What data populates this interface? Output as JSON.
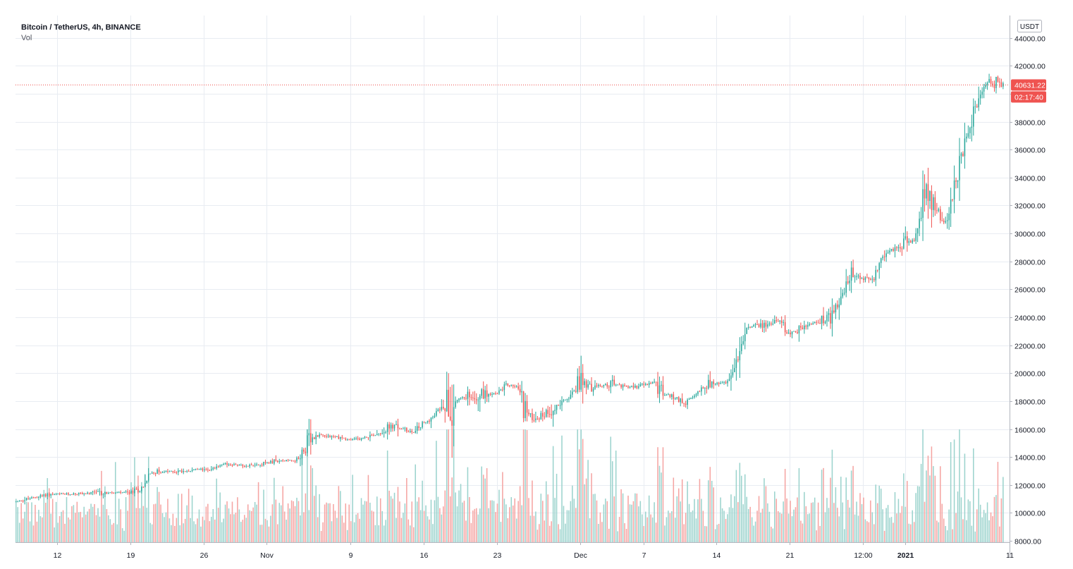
{
  "legend": {
    "symbol": "Bitcoin / TetherUS, 4h, BINANCE",
    "volume_label": "Vol"
  },
  "currency_badge": "USDT",
  "last_price_label": "40631.22",
  "countdown_label": "02:17:40",
  "colors": {
    "up": "#26a69a",
    "down": "#ef5350",
    "vol_up": "#9bd3cd",
    "vol_down": "#f5a4a2",
    "grid": "#e8ecf2",
    "price_line": "#ef5350"
  },
  "chart_data": {
    "type": "candlestick",
    "title": "Bitcoin / TetherUS, 4h, BINANCE",
    "x_tick_labels": [
      "12",
      "19",
      "26",
      "Nov",
      "9",
      "16",
      "23",
      "Dec",
      "7",
      "14",
      "21",
      "12:00",
      "2021",
      "11"
    ],
    "y_tick_labels": [
      "8000.00",
      "10000.00",
      "12000.00",
      "14000.00",
      "16000.00",
      "18000.00",
      "20000.00",
      "22000.00",
      "24000.00",
      "26000.00",
      "28000.00",
      "30000.00",
      "32000.00",
      "34000.00",
      "36000.00",
      "38000.00",
      "40000.00",
      "42000.00",
      "44000.00"
    ],
    "ylim": [
      7900,
      45600
    ],
    "last_price": 40631.22,
    "price_anchors_close": [
      [
        "2020-10-08",
        10800
      ],
      [
        "2020-10-11",
        11300
      ],
      [
        "2020-10-15",
        11400
      ],
      [
        "2020-10-19",
        11450
      ],
      [
        "2020-10-20",
        11700
      ],
      [
        "2020-10-21",
        12900
      ],
      [
        "2020-10-24",
        13000
      ],
      [
        "2020-10-27",
        13200
      ],
      [
        "2020-10-28",
        13500
      ],
      [
        "2020-10-30",
        13350
      ],
      [
        "2020-11-02",
        13700
      ],
      [
        "2020-11-04",
        13800
      ],
      [
        "2020-11-05",
        15000
      ],
      [
        "2020-11-06",
        15600
      ],
      [
        "2020-11-08",
        15400
      ],
      [
        "2020-11-09",
        15200
      ],
      [
        "2020-11-10",
        15300
      ],
      [
        "2020-11-12",
        15800
      ],
      [
        "2020-11-13",
        16200
      ],
      [
        "2020-11-15",
        15800
      ],
      [
        "2020-11-17",
        16900
      ],
      [
        "2020-11-18",
        18000
      ],
      [
        "2020-11-19",
        18000
      ],
      [
        "2020-11-21",
        18600
      ],
      [
        "2020-11-23",
        18500
      ],
      [
        "2020-11-24",
        19200
      ],
      [
        "2020-11-25",
        19000
      ],
      [
        "2020-11-26",
        17000
      ],
      [
        "2020-11-27",
        16800
      ],
      [
        "2020-11-28",
        17300
      ],
      [
        "2020-11-30",
        18300
      ],
      [
        "2020-12-01",
        19500
      ],
      [
        "2020-12-02",
        19000
      ],
      [
        "2020-12-04",
        19200
      ],
      [
        "2020-12-06",
        19000
      ],
      [
        "2020-12-08",
        19300
      ],
      [
        "2020-12-09",
        18500
      ],
      [
        "2020-12-10",
        18300
      ],
      [
        "2020-12-11",
        17900
      ],
      [
        "2020-12-12",
        18400
      ],
      [
        "2020-12-13",
        19200
      ],
      [
        "2020-12-15",
        19300
      ],
      [
        "2020-12-16",
        21000
      ],
      [
        "2020-12-17",
        23300
      ],
      [
        "2020-12-19",
        23500
      ],
      [
        "2020-12-20",
        23800
      ],
      [
        "2020-12-21",
        22800
      ],
      [
        "2020-12-23",
        23500
      ],
      [
        "2020-12-25",
        24000
      ],
      [
        "2020-12-26",
        25500
      ],
      [
        "2020-12-27",
        27200
      ],
      [
        "2020-12-28",
        26700
      ],
      [
        "2020-12-29",
        26800
      ],
      [
        "2020-12-30",
        28500
      ],
      [
        "2021-01-01",
        29300
      ],
      [
        "2021-01-02",
        29500
      ],
      [
        "2021-01-03",
        33000
      ],
      [
        "2021-01-04",
        32000
      ],
      [
        "2021-01-05",
        30500
      ],
      [
        "2021-01-06",
        34000
      ],
      [
        "2021-01-07",
        37000
      ],
      [
        "2021-01-08",
        39500
      ],
      [
        "2021-01-09",
        41000
      ],
      [
        "2021-01-10",
        40631
      ]
    ],
    "volume_scale": "relative bar heights, no numeric axis shown"
  }
}
